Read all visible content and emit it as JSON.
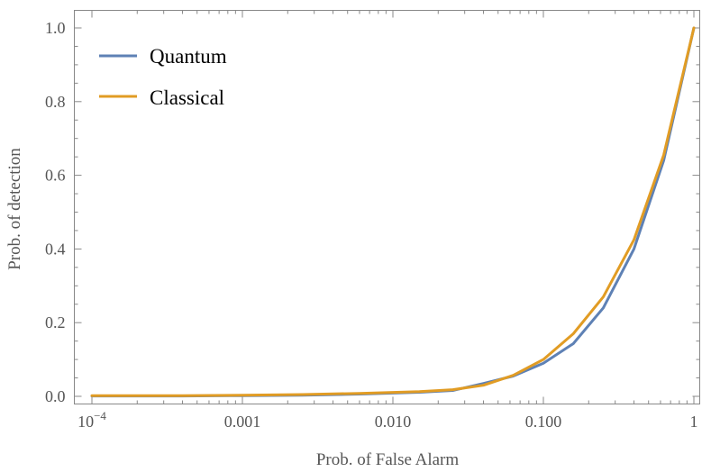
{
  "chart_data": {
    "type": "line",
    "xlabel": "Prob. of False Alarm",
    "ylabel": "Prob. of detection",
    "xscale": "log",
    "xlim": [
      0.0001,
      1
    ],
    "ylim": [
      0,
      1
    ],
    "grid": false,
    "legend_position": "top-left",
    "x_ticks": [
      {
        "value": 0.0001,
        "base": "10",
        "exp": "−4"
      },
      {
        "value": 0.001,
        "label": "0.001"
      },
      {
        "value": 0.01,
        "label": "0.010"
      },
      {
        "value": 0.1,
        "label": "0.100"
      },
      {
        "value": 1,
        "label": "1"
      }
    ],
    "y_ticks": [
      {
        "value": 0.0,
        "label": "0.0"
      },
      {
        "value": 0.2,
        "label": "0.2"
      },
      {
        "value": 0.4,
        "label": "0.4"
      },
      {
        "value": 0.6,
        "label": "0.6"
      },
      {
        "value": 0.8,
        "label": "0.8"
      },
      {
        "value": 1.0,
        "label": "1.0"
      }
    ],
    "series": [
      {
        "name": "Quantum",
        "color": "#5E81B5",
        "points": [
          [
            0.0001,
            0.001
          ],
          [
            0.0004,
            0.001
          ],
          [
            0.001,
            0.002
          ],
          [
            0.0025,
            0.003
          ],
          [
            0.006,
            0.006
          ],
          [
            0.015,
            0.011
          ],
          [
            0.025,
            0.016
          ],
          [
            0.04,
            0.035
          ],
          [
            0.063,
            0.055
          ],
          [
            0.1,
            0.09
          ],
          [
            0.158,
            0.143
          ],
          [
            0.25,
            0.24
          ],
          [
            0.4,
            0.4
          ],
          [
            0.63,
            0.64
          ],
          [
            1,
            1
          ]
        ]
      },
      {
        "name": "Classical",
        "color": "#E19C24",
        "points": [
          [
            0.0001,
            0.002
          ],
          [
            0.0004,
            0.002
          ],
          [
            0.001,
            0.003
          ],
          [
            0.0025,
            0.005
          ],
          [
            0.006,
            0.008
          ],
          [
            0.015,
            0.013
          ],
          [
            0.025,
            0.018
          ],
          [
            0.04,
            0.03
          ],
          [
            0.063,
            0.057
          ],
          [
            0.1,
            0.1
          ],
          [
            0.158,
            0.17
          ],
          [
            0.25,
            0.27
          ],
          [
            0.4,
            0.425
          ],
          [
            0.63,
            0.655
          ],
          [
            1,
            1
          ]
        ]
      }
    ]
  }
}
